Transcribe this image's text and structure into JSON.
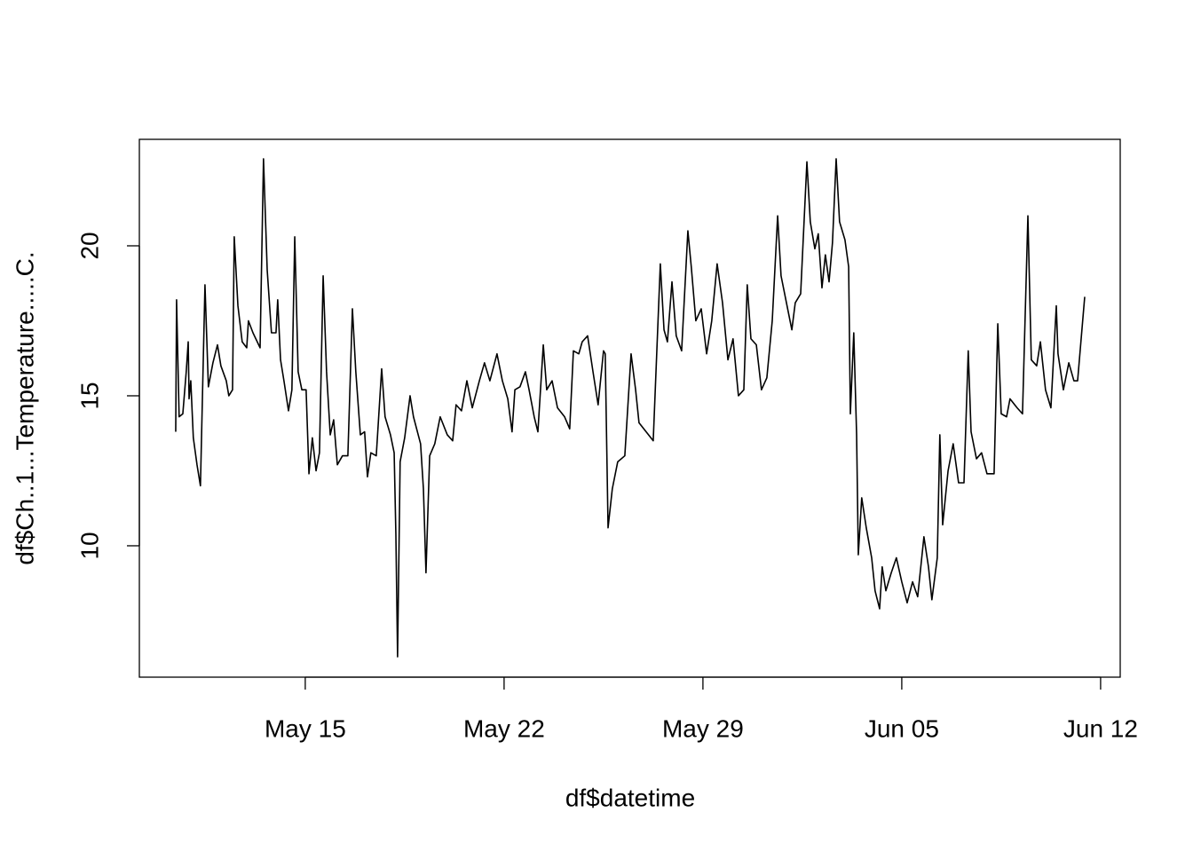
{
  "chart_data": {
    "type": "line",
    "x_label": "df$datetime",
    "y_label": "df$Ch..1...Temperature.....C.",
    "color": "#000000",
    "xlim": [
      9.16,
      43.69
    ],
    "ylim": [
      5.62,
      23.55
    ],
    "xticks": [
      {
        "value": 15,
        "label": "May 15"
      },
      {
        "value": 22,
        "label": "May 22"
      },
      {
        "value": 29,
        "label": "May 29"
      },
      {
        "value": 36,
        "label": "Jun 05"
      },
      {
        "value": 43,
        "label": "Jun 12"
      }
    ],
    "yticks": [
      10,
      15,
      20
    ],
    "x": [
      10.44,
      10.47,
      10.56,
      10.69,
      10.81,
      10.88,
      10.91,
      10.97,
      11.06,
      11.19,
      11.31,
      11.47,
      11.59,
      11.75,
      11.91,
      12.03,
      12.22,
      12.31,
      12.44,
      12.5,
      12.63,
      12.78,
      12.94,
      13.0,
      13.16,
      13.41,
      13.53,
      13.66,
      13.81,
      13.97,
      14.03,
      14.13,
      14.25,
      14.41,
      14.53,
      14.63,
      14.75,
      14.88,
      15.03,
      15.13,
      15.25,
      15.38,
      15.5,
      15.63,
      15.75,
      15.88,
      16.0,
      16.13,
      16.31,
      16.5,
      16.66,
      16.78,
      16.94,
      17.09,
      17.19,
      17.31,
      17.5,
      17.69,
      17.81,
      18.0,
      18.13,
      18.19,
      18.25,
      18.34,
      18.5,
      18.69,
      18.81,
      19.06,
      19.16,
      19.25,
      19.38,
      19.56,
      19.75,
      20.0,
      20.19,
      20.31,
      20.5,
      20.69,
      20.88,
      21.13,
      21.31,
      21.5,
      21.75,
      21.94,
      22.13,
      22.28,
      22.38,
      22.56,
      22.75,
      22.88,
      23.06,
      23.19,
      23.38,
      23.5,
      23.69,
      23.88,
      24.13,
      24.31,
      24.44,
      24.63,
      24.75,
      24.94,
      25.13,
      25.31,
      25.5,
      25.56,
      25.66,
      25.81,
      26.0,
      26.25,
      26.47,
      26.63,
      26.75,
      27.0,
      27.25,
      27.5,
      27.63,
      27.75,
      27.91,
      28.06,
      28.25,
      28.47,
      28.59,
      28.75,
      28.94,
      29.13,
      29.31,
      29.5,
      29.69,
      29.88,
      30.06,
      30.25,
      30.44,
      30.56,
      30.69,
      30.88,
      31.06,
      31.25,
      31.44,
      31.63,
      31.75,
      31.94,
      32.13,
      32.25,
      32.44,
      32.66,
      32.78,
      32.94,
      33.06,
      33.19,
      33.31,
      33.44,
      33.56,
      33.69,
      33.81,
      34.0,
      34.13,
      34.19,
      34.31,
      34.41,
      34.47,
      34.59,
      34.75,
      34.94,
      35.06,
      35.22,
      35.31,
      35.44,
      35.63,
      35.81,
      36.0,
      36.19,
      36.38,
      36.56,
      36.78,
      36.94,
      37.06,
      37.25,
      37.34,
      37.44,
      37.63,
      37.81,
      38.0,
      38.19,
      38.34,
      38.44,
      38.63,
      38.81,
      39.0,
      39.25,
      39.38,
      39.5,
      39.69,
      39.81,
      40.06,
      40.25,
      40.44,
      40.56,
      40.75,
      40.88,
      41.06,
      41.25,
      41.44,
      41.5,
      41.69,
      41.88,
      42.06,
      42.19,
      42.44
    ],
    "values": [
      13.8,
      18.2,
      14.3,
      14.4,
      15.8,
      16.8,
      14.9,
      15.5,
      13.6,
      12.7,
      12.0,
      18.7,
      15.3,
      16.1,
      16.7,
      16.0,
      15.5,
      15.0,
      15.2,
      20.3,
      18.0,
      16.8,
      16.6,
      17.5,
      17.1,
      16.6,
      22.9,
      19.2,
      17.1,
      17.1,
      18.2,
      16.2,
      15.5,
      14.5,
      15.2,
      20.3,
      15.8,
      15.2,
      15.2,
      12.4,
      13.6,
      12.5,
      13.1,
      19.0,
      15.8,
      13.7,
      14.2,
      12.7,
      13.0,
      13.0,
      17.9,
      15.8,
      13.7,
      13.8,
      12.3,
      13.1,
      13.0,
      15.9,
      14.3,
      13.7,
      13.1,
      10.4,
      6.3,
      12.8,
      13.6,
      15.0,
      14.3,
      13.4,
      11.9,
      9.1,
      13.0,
      13.4,
      14.3,
      13.7,
      13.5,
      14.7,
      14.5,
      15.5,
      14.6,
      15.5,
      16.1,
      15.5,
      16.4,
      15.5,
      14.9,
      13.8,
      15.2,
      15.3,
      15.8,
      15.2,
      14.3,
      13.8,
      16.7,
      15.2,
      15.5,
      14.6,
      14.3,
      13.9,
      16.5,
      16.4,
      16.8,
      17.0,
      15.8,
      14.7,
      16.5,
      16.4,
      10.6,
      11.9,
      12.8,
      13.0,
      16.4,
      15.2,
      14.1,
      13.8,
      13.5,
      19.4,
      17.2,
      16.8,
      18.8,
      17.0,
      16.5,
      20.5,
      19.3,
      17.5,
      17.9,
      16.4,
      17.5,
      19.4,
      18.1,
      16.2,
      16.9,
      15.0,
      15.2,
      18.7,
      16.9,
      16.7,
      15.2,
      15.6,
      17.5,
      21.0,
      19.0,
      18.1,
      17.2,
      18.1,
      18.4,
      22.8,
      20.8,
      19.9,
      20.4,
      18.6,
      19.7,
      18.8,
      20.1,
      22.9,
      20.8,
      20.2,
      19.3,
      14.4,
      17.1,
      13.7,
      9.7,
      11.6,
      10.6,
      9.6,
      8.5,
      7.9,
      9.3,
      8.5,
      9.1,
      9.6,
      8.8,
      8.1,
      8.8,
      8.3,
      10.3,
      9.3,
      8.2,
      9.6,
      13.7,
      10.7,
      12.5,
      13.4,
      12.1,
      12.1,
      16.5,
      13.8,
      12.9,
      13.1,
      12.4,
      12.4,
      17.4,
      14.4,
      14.3,
      14.9,
      14.6,
      14.4,
      21.0,
      16.2,
      16.0,
      16.8,
      15.2,
      14.6,
      18.0,
      16.4,
      15.2,
      16.1,
      15.5,
      15.5,
      18.3
    ]
  }
}
